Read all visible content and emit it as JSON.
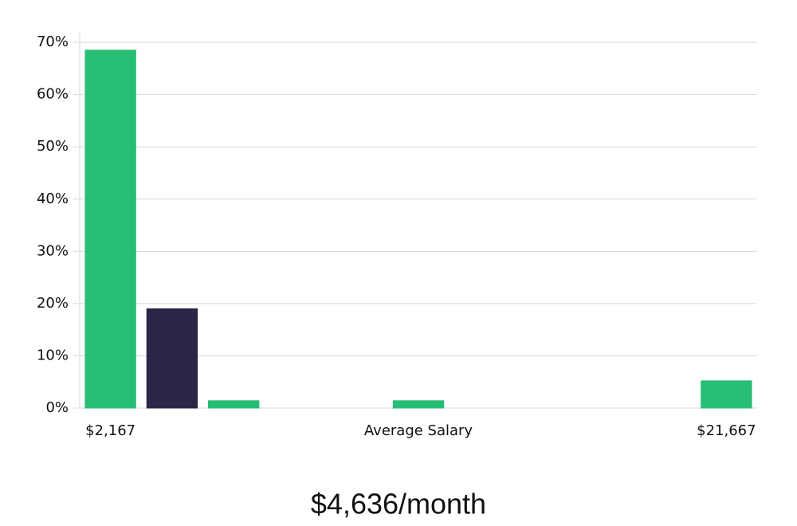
{
  "chart_data": {
    "type": "bar",
    "subtitle": "$4,636/month",
    "x_label": "Average Salary",
    "categories": [
      "$2,167",
      null,
      null,
      null,
      null,
      null,
      null,
      null,
      null,
      null,
      "$21,667"
    ],
    "values": [
      68.5,
      19,
      1.4,
      0,
      0,
      1.4,
      0,
      0,
      0,
      0,
      5.2
    ],
    "colors": [
      "#27bd74",
      "#2a2746",
      "#27bd74",
      "#27bd74",
      "#27bd74",
      "#27bd74",
      "#27bd74",
      "#27bd74",
      "#27bd74",
      "#27bd74",
      "#27bd74"
    ],
    "ylim": [
      0,
      72
    ],
    "yticks": [
      {
        "value": 0,
        "label": "0%"
      },
      {
        "value": 10,
        "label": "10%"
      },
      {
        "value": 20,
        "label": "20%"
      },
      {
        "value": 30,
        "label": "30%"
      },
      {
        "value": 40,
        "label": "40%"
      },
      {
        "value": 50,
        "label": "50%"
      },
      {
        "value": 60,
        "label": "60%"
      },
      {
        "value": 70,
        "label": "70%"
      }
    ],
    "grid": true
  }
}
